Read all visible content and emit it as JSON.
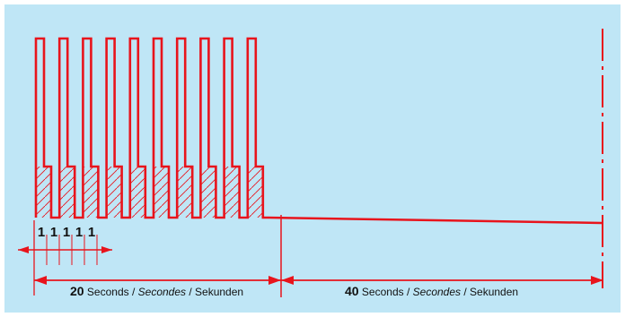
{
  "colors": {
    "background": "#bfe6f6",
    "signal": "#e8141c",
    "text": "#111111"
  },
  "diagram": {
    "pulse_count": 10,
    "pulse_step_labels": [
      "1",
      "1",
      "1",
      "1",
      "1"
    ],
    "first_interval": {
      "number": "20",
      "word_en": "Seconds",
      "sep1": " / ",
      "word_fr": "Secondes",
      "sep2": " / ",
      "word_de": "Sekunden"
    },
    "second_interval": {
      "number": "40",
      "word_en": "Seconds",
      "sep1": " / ",
      "word_fr": "Secondes",
      "sep2": " / ",
      "word_de": "Sekunden"
    }
  }
}
